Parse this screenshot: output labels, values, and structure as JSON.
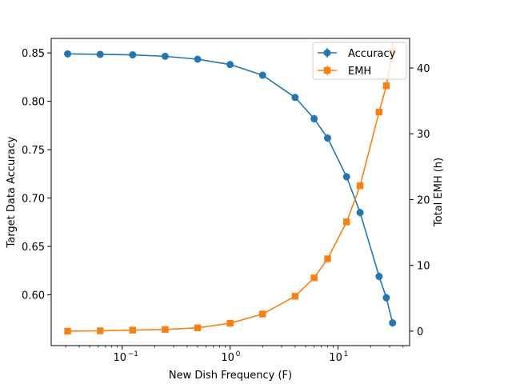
{
  "chart_data": {
    "type": "line",
    "title": "",
    "xlabel": "New Dish Frequency (F)",
    "xscale": "log",
    "xlim": [
      0.022,
      46
    ],
    "x": [
      0.03125,
      0.0625,
      0.125,
      0.25,
      0.5,
      1,
      2,
      4,
      6,
      8,
      12,
      16,
      24,
      28,
      32
    ],
    "xticks": [
      {
        "value": 0.1,
        "base": "10",
        "exp": "−1"
      },
      {
        "value": 1,
        "base": "10",
        "exp": "0"
      },
      {
        "value": 10,
        "base": "10",
        "exp": "1"
      }
    ],
    "y_left": {
      "label": "Target Data Accuracy",
      "ylim": [
        0.5475,
        0.865
      ],
      "ticks": [
        "0.60",
        "0.65",
        "0.70",
        "0.75",
        "0.80",
        "0.85"
      ]
    },
    "y_right": {
      "label": "Total EMH (h)",
      "ylim": [
        -2.2,
        44.5
      ],
      "ticks": [
        "0",
        "10",
        "20",
        "30",
        "40"
      ]
    },
    "series": [
      {
        "name": "Accuracy",
        "axis": "left",
        "color": "#1f77b4",
        "marker": "circle",
        "values": [
          0.849,
          0.8485,
          0.848,
          0.8465,
          0.8435,
          0.838,
          0.827,
          0.804,
          0.782,
          0.762,
          0.722,
          0.685,
          0.619,
          0.597,
          0.571
        ],
        "errors": [
          0.001,
          0.001,
          0.001,
          0.001,
          0.001,
          0.001,
          0.002,
          0.003,
          0.004,
          0.004,
          0.004,
          0.004,
          0.004,
          0.004,
          0.004
        ]
      },
      {
        "name": "EMH",
        "axis": "right",
        "color": "#ff7f0e",
        "marker": "square",
        "values": [
          0.0,
          0.05,
          0.15,
          0.25,
          0.5,
          1.2,
          2.6,
          5.3,
          8.1,
          11.0,
          16.6,
          22.1,
          33.3,
          37.3,
          42.5
        ],
        "errors": [
          0.1,
          0.1,
          0.1,
          0.1,
          0.1,
          0.1,
          0.2,
          0.3,
          0.4,
          0.4,
          0.4,
          0.4,
          0.5,
          0.5,
          1.5
        ]
      }
    ],
    "legend": {
      "position": "top-right"
    }
  }
}
